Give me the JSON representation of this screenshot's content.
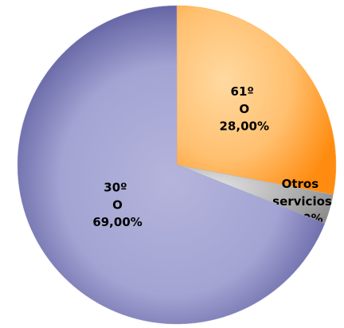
{
  "chart_data": {
    "type": "pie",
    "categories": [
      "61º O",
      "Otros servicios",
      "30º O"
    ],
    "values": [
      28,
      3,
      69
    ],
    "value_labels": [
      "28,00%",
      "3,00%",
      "69,00%"
    ],
    "colors": [
      "#ffb24a",
      "#b8b8b8",
      "#a4a4d4"
    ],
    "start_angle": 90,
    "direction": "clockwise"
  }
}
